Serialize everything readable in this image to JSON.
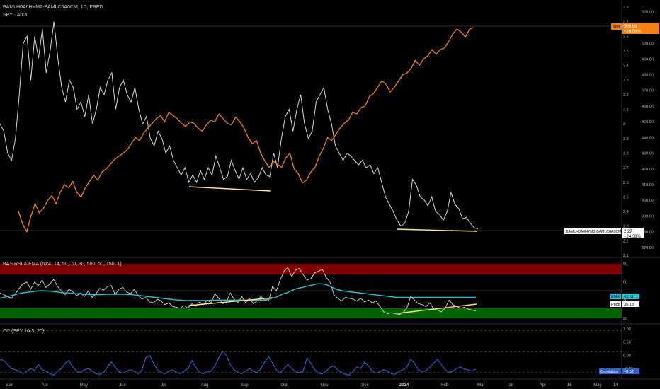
{
  "header": {
    "title": "BAMLH0A0HYM2-BAMLC0A0CM, 1D, FRED",
    "subtitle": "SPY · Arca"
  },
  "rsi_panel": {
    "title": "BAS RSI & EMA (hlc4, 14, 50, 70, 30, 500, 50, 150, 1)"
  },
  "cc_panel": {
    "title": "CC (SPY, hlc3, 20)"
  },
  "colors": {
    "spread": "#d7d7d7",
    "spy": "#f57f17",
    "ema": "#26c6da",
    "cc": "#2f5fd8",
    "trend": "#ffe082",
    "over_band": "#7f0000",
    "under_band": "#006400",
    "background": "#000000"
  },
  "chart_data": [
    {
      "type": "line",
      "title": "BAMLH0A0HYM2-BAMLC0A0CM",
      "x_ticks": [
        "Mar",
        "Apr",
        "May",
        "Jun",
        "Jul",
        "Aug",
        "Sep",
        "Oct",
        "Nov",
        "Dec",
        "2024",
        "Feb",
        "Mar",
        "18",
        "Apr",
        "15",
        "May",
        "14"
      ],
      "y_ticks_left_scale": [
        "3.8",
        "3.7",
        "3.6",
        "3.5",
        "3.4",
        "3.3",
        "3.2",
        "3.1",
        "3",
        "2.9",
        "2.8",
        "2.7",
        "2.6",
        "2.5",
        "2.4",
        "2.3",
        "2.2",
        "2.1"
      ],
      "y_ticks_right_scale": [
        "520.00",
        "510.00",
        "500.00",
        "490.00",
        "480.00",
        "470.00",
        "460.00",
        "450.00",
        "440.00",
        "430.00",
        "420.00",
        "410.00",
        "400.00",
        "390.00",
        "380.00",
        "370.00"
      ],
      "ylim_left": [
        2.1,
        3.8
      ],
      "ylim_right": [
        365,
        523
      ],
      "series": [
        {
          "name": "BAMLH0A0HYM2-BAMLC0A0CM",
          "axis": "left",
          "values": [
            3.0,
            2.95,
            2.8,
            2.75,
            2.9,
            3.2,
            3.55,
            3.6,
            3.3,
            3.6,
            3.45,
            3.65,
            3.35,
            3.5,
            3.7,
            3.45,
            3.25,
            3.15,
            3.3,
            3.25,
            3.1,
            3.15,
            3.05,
            3.2,
            3.0,
            3.1,
            3.25,
            3.2,
            3.3,
            3.35,
            3.1,
            3.25,
            3.3,
            3.2,
            3.15,
            3.25,
            3.1,
            3.0,
            3.05,
            2.9,
            2.85,
            2.95,
            2.9,
            2.8,
            2.85,
            2.75,
            2.7,
            2.65,
            2.7,
            2.6,
            2.65,
            2.6,
            2.68,
            2.62,
            2.7,
            2.65,
            2.78,
            2.7,
            2.62,
            2.64,
            2.75,
            2.68,
            2.62,
            2.7,
            2.62,
            2.66,
            2.6,
            2.63,
            2.7,
            2.65,
            2.64,
            2.8,
            2.7,
            2.9,
            3.05,
            3.1,
            2.95,
            3.1,
            3.2,
            3.0,
            2.9,
            2.95,
            3.15,
            3.2,
            3.25,
            3.1,
            3.0,
            2.85,
            2.8,
            2.75,
            2.8,
            2.78,
            2.75,
            2.72,
            2.75,
            2.7,
            2.72,
            2.66,
            2.7,
            2.6,
            2.5,
            2.45,
            2.4,
            2.34,
            2.3,
            2.32,
            2.4,
            2.62,
            2.58,
            2.5,
            2.48,
            2.44,
            2.5,
            2.4,
            2.38,
            2.34,
            2.4,
            2.53,
            2.45,
            2.42,
            2.35,
            2.36,
            2.32,
            2.29,
            2.28
          ]
        },
        {
          "name": "SPY",
          "axis": "right",
          "last_value": "509.69",
          "last_change": "+28.59%",
          "values": [
            393,
            385,
            380,
            390,
            398,
            392,
            395,
            400,
            403,
            398,
            405,
            410,
            408,
            412,
            405,
            402,
            408,
            412,
            416,
            413,
            418,
            420,
            423,
            426,
            428,
            430,
            432,
            436,
            440,
            438,
            443,
            446,
            449,
            452,
            454,
            450,
            456,
            454,
            452,
            449,
            447,
            450,
            449,
            446,
            444,
            448,
            451,
            450,
            455,
            452,
            449,
            448,
            453,
            450,
            446,
            440,
            436,
            438,
            430,
            425,
            421,
            425,
            423,
            421,
            427,
            430,
            420,
            417,
            411,
            413,
            418,
            421,
            428,
            433,
            440,
            438,
            442,
            446,
            449,
            451,
            456,
            455,
            459,
            460,
            466,
            468,
            472,
            476,
            474,
            469,
            472,
            476,
            480,
            481,
            484,
            489,
            486,
            490,
            492,
            496,
            493,
            496,
            497,
            501,
            506,
            509,
            507,
            504,
            509,
            510
          ]
        }
      ],
      "labels": {
        "spy_tag": "SPY",
        "spread_tag": "BAMLH0A0HYM2-BAMLC0A0CM",
        "spread_last_value": "2.27",
        "spread_change": "−24.33%",
        "spy_last_value": "509.69",
        "spy_change": "+28.59%"
      }
    },
    {
      "type": "line",
      "title": "BAS RSI & EMA (hlc4, 14, 50, 70, 30, 500, 50, 150, 1)",
      "y_ticks": [
        "80",
        "60",
        "40",
        "20"
      ],
      "ylim": [
        16,
        84
      ],
      "bands": {
        "upper": [
          70,
          84
        ],
        "lower": [
          22,
          30
        ]
      },
      "series": [
        {
          "name": "RSI",
          "values": [
            48,
            46,
            44,
            42,
            47,
            53,
            58,
            60,
            52,
            60,
            56,
            62,
            54,
            58,
            63,
            55,
            50,
            46,
            52,
            49,
            45,
            48,
            44,
            50,
            43,
            47,
            53,
            51,
            55,
            56,
            46,
            52,
            54,
            49,
            47,
            52,
            45,
            41,
            43,
            38,
            37,
            41,
            39,
            35,
            37,
            33,
            32,
            31,
            34,
            31,
            36,
            33,
            38,
            35,
            40,
            37,
            47,
            42,
            36,
            38,
            48,
            41,
            37,
            44,
            37,
            42,
            36,
            39,
            44,
            40,
            39,
            55,
            50,
            62,
            72,
            76,
            66,
            73,
            75,
            68,
            62,
            64,
            70,
            72,
            74,
            65,
            60,
            46,
            42,
            39,
            43,
            42,
            41,
            39,
            42,
            38,
            40,
            37,
            39,
            33,
            27,
            25,
            26,
            25,
            24,
            26,
            31,
            44,
            40,
            36,
            35,
            33,
            37,
            30,
            29,
            27,
            31,
            40,
            35,
            33,
            31,
            32,
            30,
            29,
            28
          ],
          "last_label": "Price",
          "last_value": "35.18"
        },
        {
          "name": "EMA",
          "values": [
            42,
            43,
            44,
            45,
            46,
            47,
            48,
            48.5,
            49,
            49.5,
            50,
            50.5,
            50,
            50,
            49.5,
            49,
            48.5,
            48,
            48,
            47.5,
            47,
            47,
            46.5,
            46.5,
            46,
            46,
            46,
            46,
            46.5,
            46.5,
            46.5,
            46.5,
            46.5,
            46.5,
            46,
            46,
            45.5,
            45,
            44.5,
            44,
            43.5,
            43,
            42.5,
            42,
            41.5,
            41,
            40.5,
            40,
            40,
            39.5,
            39.5,
            39.5,
            39.5,
            39.5,
            39.5,
            39.5,
            40,
            40,
            40,
            40,
            40,
            40,
            40,
            40,
            40,
            40,
            40,
            40,
            40,
            40,
            40,
            41,
            42,
            43,
            45,
            47,
            48,
            50,
            52,
            53,
            54,
            55,
            56,
            57,
            58,
            58,
            57.5,
            56,
            54,
            52,
            51,
            50,
            49.5,
            49,
            48.5,
            48,
            47.5,
            47,
            46.5,
            46,
            45.5,
            45,
            44.5,
            44,
            43.5,
            43,
            43,
            43,
            43,
            43,
            43,
            43,
            43,
            43,
            43,
            43,
            43,
            43,
            43,
            43,
            43,
            43,
            43,
            43,
            43,
            43,
            43
          ],
          "last_label": "EMA",
          "last_value": "43.51"
        }
      ]
    },
    {
      "type": "line",
      "title": "CC (SPY, hlc3, 20)",
      "y_ticks": [
        "1.00",
        "0.50",
        "0.00",
        "−0.50"
      ],
      "ylim": [
        -0.9,
        1.1
      ],
      "series": [
        {
          "name": "Correlation",
          "last_label": "Correlation",
          "last_value": "−0.52",
          "values": [
            -0.15,
            -0.2,
            -0.35,
            -0.5,
            -0.55,
            -0.6,
            -0.7,
            -0.6,
            -0.5,
            -0.58,
            -0.35,
            -0.55,
            -0.6,
            -0.7,
            -0.75,
            -0.6,
            -0.5,
            -0.3,
            -0.2,
            -0.45,
            -0.6,
            -0.65,
            -0.55,
            -0.5,
            -0.6,
            -0.7,
            -0.72,
            -0.65,
            -0.45,
            -0.25,
            -0.45,
            -0.62,
            -0.68,
            -0.6,
            -0.55,
            -0.6,
            -0.7,
            -0.55,
            -0.1,
            0.0,
            -0.3,
            -0.55,
            -0.65,
            -0.7,
            -0.6,
            -0.55,
            -0.65,
            -0.7,
            -0.6,
            -0.5,
            -0.2,
            -0.45,
            -0.65,
            -0.7,
            -0.62,
            -0.6,
            -0.4,
            -0.1,
            0.15,
            0.0,
            -0.35,
            -0.55,
            -0.65,
            -0.7,
            -0.6,
            -0.5,
            -0.6,
            -0.66,
            -0.5,
            -0.25,
            -0.05,
            -0.3,
            -0.55,
            -0.68,
            -0.5,
            -0.35,
            -0.5,
            -0.62,
            -0.66,
            -0.6,
            -0.1,
            -0.3,
            -0.55,
            -0.68,
            -0.7,
            -0.6,
            -0.45,
            -0.4,
            -0.55,
            -0.65,
            -0.72,
            -0.75,
            -0.6,
            -0.45,
            -0.5,
            -0.25,
            -0.4,
            -0.6,
            -0.68,
            -0.62,
            -0.55,
            -0.6,
            -0.7,
            -0.72,
            -0.6,
            -0.55,
            -0.45,
            -0.15,
            -0.3,
            -0.55,
            -0.62,
            -0.58,
            -0.45,
            -0.3,
            -0.15,
            -0.35,
            -0.55,
            -0.65,
            -0.6,
            -0.5,
            -0.45,
            -0.52,
            -0.55,
            -0.6,
            -0.52
          ]
        }
      ]
    }
  ]
}
